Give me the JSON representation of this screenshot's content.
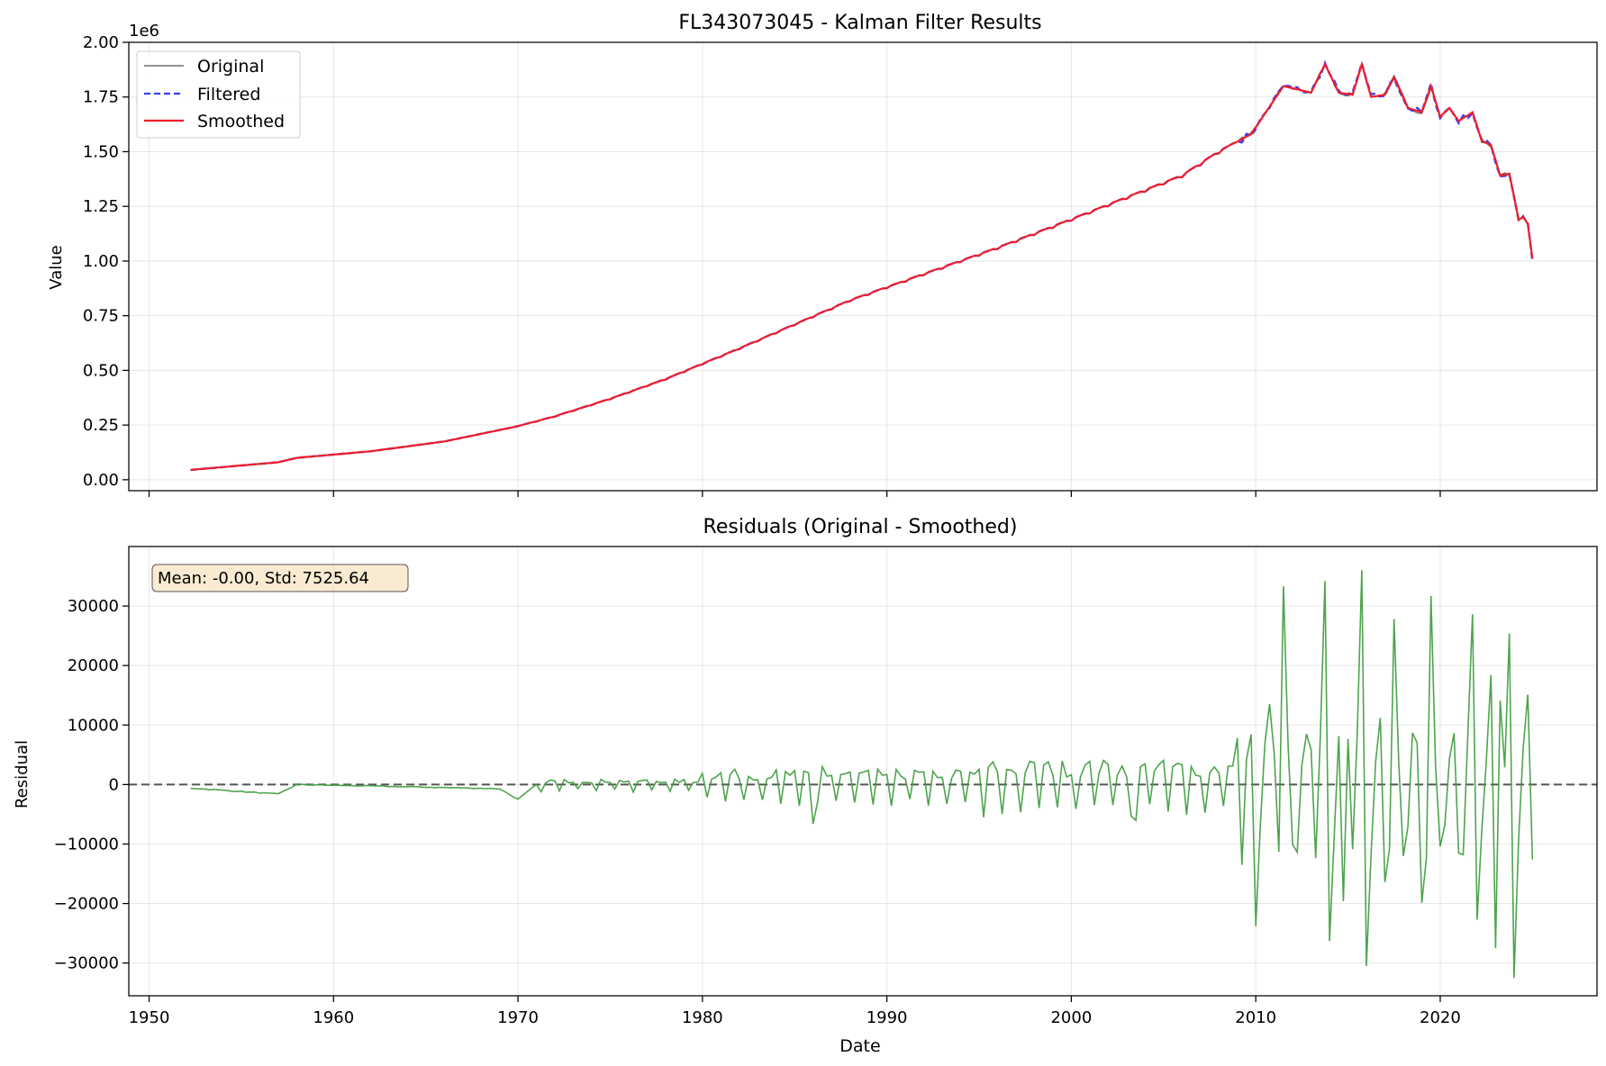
{
  "chart_data": [
    {
      "type": "line",
      "title": "FL343073045 - Kalman Filter Results",
      "ylabel": "Value",
      "y_offset_label": "1e6",
      "xlim": [
        1948.9,
        2028.5
      ],
      "ylim": [
        -0.05,
        2.0
      ],
      "y_ticks": [
        "0.00",
        "0.25",
        "0.50",
        "0.75",
        "1.00",
        "1.25",
        "1.50",
        "1.75",
        "2.00"
      ],
      "grid": true,
      "legend_position": "upper left",
      "series": [
        {
          "name": "Original",
          "color": "#6e6e6e",
          "style": "solid"
        },
        {
          "name": "Filtered",
          "color": "#3a3aff",
          "style": "dashed"
        },
        {
          "name": "Smoothed",
          "color": "#ee1e2a",
          "style": "solid"
        }
      ],
      "trend": {
        "x": [
          1952.25,
          1957.0,
          1958.0,
          1962.0,
          1966.0,
          1970.0,
          1972.0,
          1975.0,
          1978.0,
          1980.0,
          1982.0,
          1985.0,
          1988.0,
          1990.0,
          1993.0,
          1996.0,
          2000.0,
          2003.0,
          2006.0,
          2008.0,
          2009.75,
          2011.5,
          2013.0,
          2013.75,
          2014.5,
          2015.25,
          2015.75,
          2016.25,
          2017.0,
          2017.5,
          2018.25,
          2019.0,
          2019.5,
          2020.0,
          2020.5,
          2021.0,
          2021.75,
          2022.25,
          2022.75,
          2023.25,
          2023.75,
          2024.25,
          2024.5,
          2024.75,
          2025.0
        ],
        "y": [
          0.045,
          0.08,
          0.1,
          0.13,
          0.175,
          0.245,
          0.29,
          0.37,
          0.46,
          0.53,
          0.6,
          0.71,
          0.82,
          0.88,
          0.97,
          1.06,
          1.19,
          1.29,
          1.39,
          1.5,
          1.58,
          1.8,
          1.77,
          1.9,
          1.77,
          1.76,
          1.9,
          1.75,
          1.76,
          1.84,
          1.7,
          1.68,
          1.8,
          1.66,
          1.7,
          1.64,
          1.68,
          1.55,
          1.53,
          1.39,
          1.4,
          1.19,
          1.2,
          1.17,
          1.01
        ]
      }
    },
    {
      "type": "line",
      "title": "Residuals (Original - Smoothed)",
      "xlabel": "Date",
      "ylabel": "Residual",
      "xlim": [
        1948.9,
        2028.5
      ],
      "ylim": [
        -35500,
        40000
      ],
      "x_ticks": [
        "1950",
        "1960",
        "1970",
        "1980",
        "1990",
        "2000",
        "2010",
        "2020"
      ],
      "y_ticks": [
        "−30000",
        "−20000",
        "−10000",
        "0",
        "10000",
        "20000",
        "30000"
      ],
      "grid": true,
      "zero_line": true,
      "annotation": "Mean: -0.00, Std: 7525.64",
      "series": [
        {
          "color": "#3b9a3b",
          "x": [
            1952.25,
            1957.0,
            1958.0,
            1969.0,
            1970.0,
            1971.0
          ],
          "y": [
            -600,
            -1600,
            0,
            -700,
            -2500,
            0
          ]
        }
      ],
      "spikes": [
        {
          "x": 1986.0,
          "y": -6600
        },
        {
          "x": 1986.5,
          "y": 3000
        },
        {
          "x": 2003.5,
          "y": -6000
        },
        {
          "x": 2009.25,
          "y": -13500
        },
        {
          "x": 2010.0,
          "y": -23800
        },
        {
          "x": 2010.75,
          "y": 13500
        },
        {
          "x": 2011.5,
          "y": 33300
        },
        {
          "x": 2012.0,
          "y": -10100
        },
        {
          "x": 2013.25,
          "y": -12400
        },
        {
          "x": 2013.75,
          "y": 34200
        },
        {
          "x": 2014.0,
          "y": -26300
        },
        {
          "x": 2014.75,
          "y": -19600
        },
        {
          "x": 2015.75,
          "y": 36000
        },
        {
          "x": 2016.0,
          "y": -30500
        },
        {
          "x": 2016.75,
          "y": 11200
        },
        {
          "x": 2017.0,
          "y": -16400
        },
        {
          "x": 2017.5,
          "y": 27800
        },
        {
          "x": 2018.0,
          "y": -12000
        },
        {
          "x": 2018.75,
          "y": 7000
        },
        {
          "x": 2019.0,
          "y": -19900
        },
        {
          "x": 2019.5,
          "y": 31700
        },
        {
          "x": 2020.0,
          "y": -10400
        },
        {
          "x": 2021.0,
          "y": -11500
        },
        {
          "x": 2021.75,
          "y": 28600
        },
        {
          "x": 2022.0,
          "y": -22700
        },
        {
          "x": 2022.75,
          "y": 18400
        },
        {
          "x": 2023.0,
          "y": -27500
        },
        {
          "x": 2023.25,
          "y": 14100
        },
        {
          "x": 2023.75,
          "y": 25400
        },
        {
          "x": 2024.0,
          "y": -32500
        },
        {
          "x": 2024.75,
          "y": 15100
        },
        {
          "x": 2025.0,
          "y": -12600
        }
      ]
    }
  ]
}
